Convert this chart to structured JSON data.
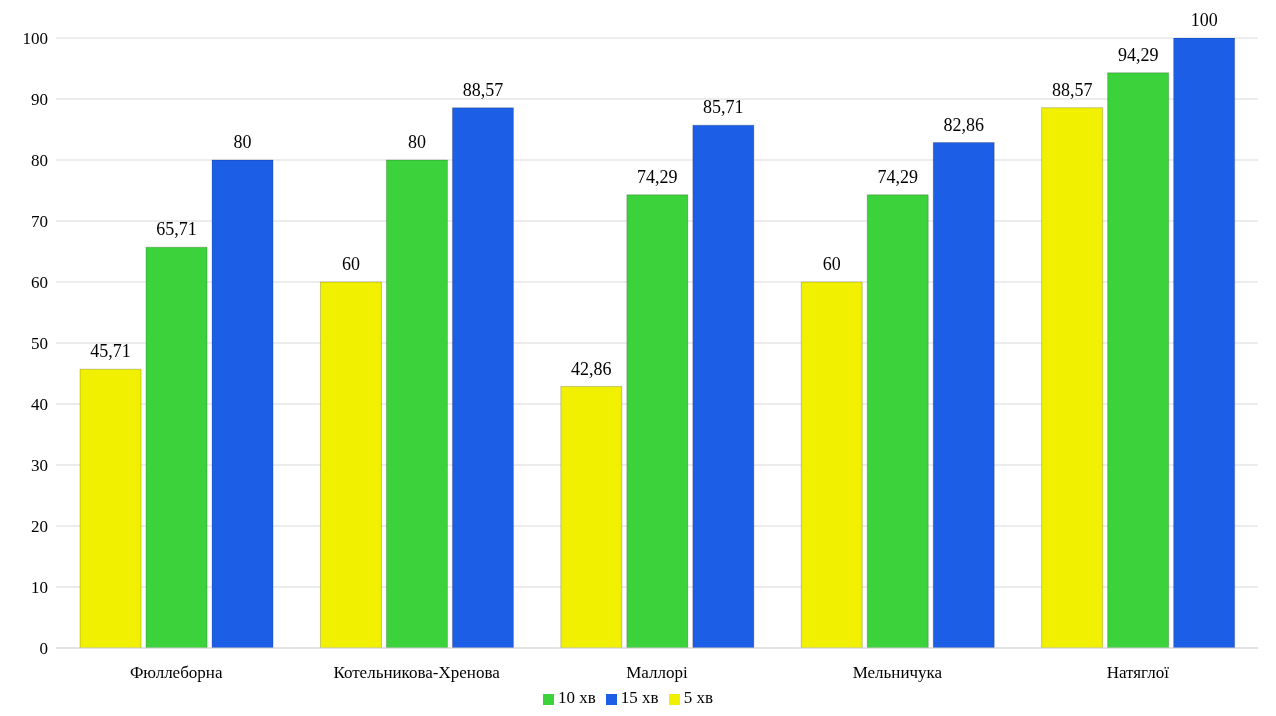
{
  "chart_data": {
    "type": "bar",
    "categories": [
      "Фюллеборна",
      "Котельникова-Хренова",
      "Маллорі",
      "Мельничука",
      "Натяглої"
    ],
    "series": [
      {
        "name": "5 хв",
        "color": "#f0f000",
        "values": [
          45.71,
          60,
          42.86,
          60,
          88.57
        ],
        "value_labels": [
          "45,71",
          "60",
          "42,86",
          "60",
          "88,57"
        ]
      },
      {
        "name": "10 хв",
        "color": "#3cd23c",
        "values": [
          65.71,
          80,
          74.29,
          74.29,
          94.29
        ],
        "value_labels": [
          "65,71",
          "80",
          "74,29",
          "74,29",
          "94,29"
        ]
      },
      {
        "name": "15 хв",
        "color": "#1c5fe6",
        "values": [
          80,
          88.57,
          85.71,
          82.86,
          100
        ],
        "value_labels": [
          "80",
          "88,57",
          "85,71",
          "82,86",
          "100"
        ]
      }
    ],
    "ylim": [
      0,
      100
    ],
    "yticks": [
      0,
      10,
      20,
      30,
      40,
      50,
      60,
      70,
      80,
      90,
      100
    ],
    "grid": "y",
    "legend": "bottom"
  }
}
